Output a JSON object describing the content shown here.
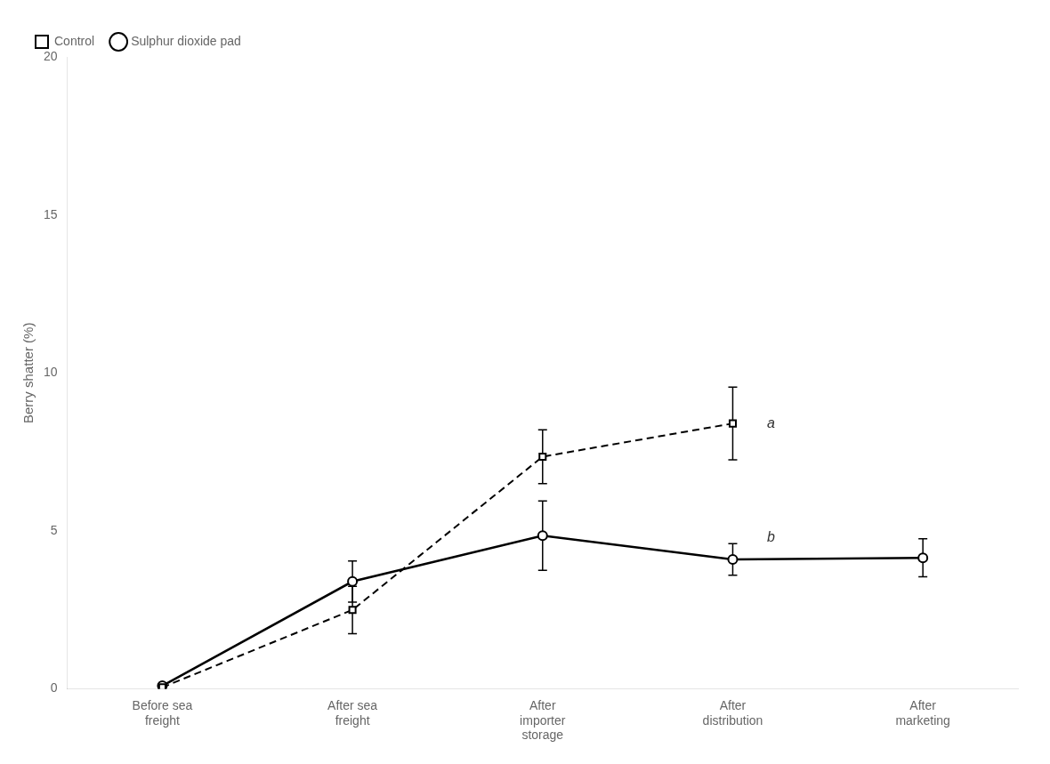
{
  "chart_data": {
    "type": "line",
    "categories": [
      "Before sea\nfreight",
      "After sea\nfreight",
      "After\nimporter\nstorage",
      "After\ndistribution",
      "After\nmarketing"
    ],
    "series": [
      {
        "name": "Control",
        "color": "#000000",
        "marker": "square",
        "line_style": "dashed",
        "values": [
          0.05,
          2.5,
          7.35,
          8.4,
          null
        ],
        "errors": [
          0.05,
          0.75,
          0.85,
          1.15,
          null
        ]
      },
      {
        "name": "Sulphur dioxide pad",
        "color": "#000000",
        "marker": "circle",
        "line_style": "solid",
        "values": [
          0.1,
          3.4,
          4.85,
          4.1,
          4.15
        ],
        "errors": [
          0.05,
          0.65,
          1.1,
          0.5,
          0.6
        ]
      }
    ],
    "ylabel": "Berry shatter (%)",
    "ylim": [
      0,
      20
    ],
    "yticks": [
      0,
      5,
      10,
      15,
      20
    ],
    "annotations": [
      {
        "text": "a",
        "x": 3.18,
        "y": 8.4
      },
      {
        "text": "b",
        "x": 3.18,
        "y": 4.8
      }
    ],
    "grid": false,
    "legend": "upper left"
  }
}
